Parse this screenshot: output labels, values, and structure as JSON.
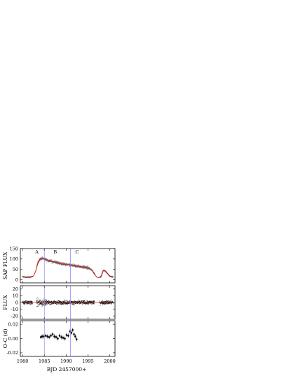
{
  "chart_data": [
    {
      "type": "scatter",
      "panel": "top",
      "ylabel": "SAP FLUX",
      "xlim": [
        1979.5,
        2001.2
      ],
      "ylim": [
        -15,
        150
      ],
      "yticks": [
        0,
        50,
        100,
        150
      ],
      "segment_labels": [
        {
          "text": "A",
          "x": 1983.3
        },
        {
          "text": "B",
          "x": 1987.5
        },
        {
          "text": "C",
          "x": 1992.5
        }
      ],
      "vlines": [
        1985.0,
        1991.0
      ],
      "colors": {
        "points": "#555555",
        "model": "#d02020",
        "vline": "#8080ff"
      },
      "series": [
        {
          "x": [
            1980.0,
            1980.5,
            1981.0,
            1981.5,
            1982.0,
            1982.5,
            1983.0,
            1983.5,
            1984.0,
            1984.5,
            1985.0,
            1986.0,
            1987.0,
            1988.0,
            1989.0,
            1990.0,
            1991.0,
            1992.0,
            1993.0,
            1994.0,
            1995.0,
            1995.5,
            1996.0,
            1996.5,
            1997.0,
            1997.5,
            1998.0,
            1998.5,
            1999.0,
            1999.5,
            2000.0,
            2000.5
          ],
          "values": [
            15,
            13,
            12,
            12,
            14,
            18,
            40,
            80,
            100,
            103,
            100,
            92,
            87,
            82,
            77,
            73,
            70,
            67,
            64,
            61,
            57,
            52,
            45,
            28,
            13,
            10,
            15,
            45,
            42,
            30,
            17,
            14
          ]
        }
      ]
    },
    {
      "type": "scatter",
      "panel": "middle",
      "ylabel": "FLUX",
      "xlim": [
        1979.5,
        2001.2
      ],
      "ylim": [
        -25,
        25
      ],
      "yticks": [
        -20,
        -10,
        0,
        10,
        20
      ],
      "vlines": [
        1985.0,
        1991.0
      ],
      "colors": {
        "points": "#000000",
        "zero_line": "#d02020",
        "vline": "#8080ff"
      },
      "series": [
        {
          "segments": [
            [
              1980.0,
              1982.3
            ],
            [
              1983.2,
              1996.5
            ],
            [
              1997.7,
              2000.8
            ]
          ],
          "amplitude_segment_A": 11,
          "amplitude_other": 5,
          "zero": 0
        }
      ]
    },
    {
      "type": "scatter",
      "panel": "bottom",
      "ylabel": "O-C (d)",
      "xlabel": "BJD 2457000+",
      "xlim": [
        1979.5,
        2001.2
      ],
      "ylim": [
        -0.025,
        0.025
      ],
      "yticks": [
        -0.02,
        0.0,
        0.02
      ],
      "xticks": [
        1980,
        1985,
        1990,
        1995,
        2000
      ],
      "vlines": [
        1985.0,
        1991.0
      ],
      "colors": {
        "points": "#000000",
        "vline": "#8080ff"
      },
      "series": [
        {
          "x": [
            1984.2,
            1984.5,
            1984.9,
            1985.3,
            1985.7,
            1986.1,
            1986.5,
            1986.9,
            1987.3,
            1987.7,
            1988.1,
            1988.5,
            1988.9,
            1989.3,
            1989.7,
            1990.1,
            1990.5,
            1990.9,
            1991.2,
            1991.5,
            1991.8,
            1992.1,
            1992.4
          ],
          "values": [
            0.002,
            0.003,
            0.003,
            0.004,
            0.003,
            0.002,
            0.004,
            0.006,
            0.003,
            0.002,
            0.0,
            0.004,
            0.002,
            0.001,
            0.0,
            0.005,
            0.004,
            0.01,
            0.008,
            0.012,
            0.006,
            0.003,
            -0.001
          ]
        }
      ]
    }
  ]
}
